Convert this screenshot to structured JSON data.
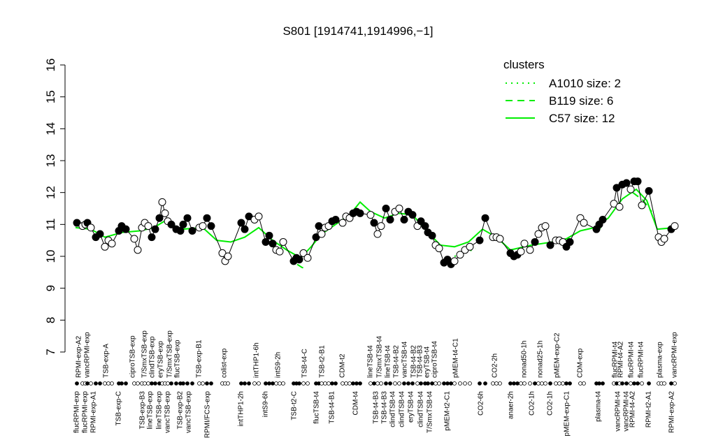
{
  "chart_data": {
    "type": "line",
    "title": "S801 [1914741,1914996,−1]",
    "ylim": [
      7,
      16
    ],
    "yticks": [
      7,
      8,
      9,
      10,
      11,
      12,
      13,
      14,
      15,
      16
    ],
    "xlim": [
      100,
      970
    ],
    "legend": {
      "title": "clusters",
      "position": "top-right",
      "color": "#00ee00"
    },
    "series": [
      {
        "name": "A1010 size: 2",
        "color": "#00ee00",
        "dash": "dotted",
        "x": [
          650,
          665,
          680
        ],
        "values": [
          10.0,
          10.1,
          10.25
        ]
      },
      {
        "name": "B119 size: 6",
        "color": "#00ee00",
        "dash": "dashed",
        "x": [
          425,
          432,
          440,
          600,
          850,
          865,
          890,
          905,
          920,
          932
        ],
        "values": [
          9.75,
          9.65,
          9.6,
          null,
          10.8,
          10.95,
          null,
          12.0,
          11.75,
          11.4
        ]
      },
      {
        "name": "C57 size: 12",
        "color": "#00ee00",
        "dash": "solid",
        "x": [
          108,
          130,
          150,
          175,
          200,
          220,
          235,
          260,
          290,
          310,
          330,
          350,
          370,
          390,
          410,
          430,
          445,
          460,
          480,
          500,
          515,
          530,
          550,
          570,
          590,
          610,
          630,
          650,
          670,
          690,
          710,
          730,
          760,
          790,
          810,
          830,
          850,
          870,
          890,
          910,
          925,
          940,
          965
        ],
        "values": [
          10.9,
          10.85,
          10.6,
          10.75,
          10.8,
          10.9,
          11.1,
          10.85,
          10.9,
          10.5,
          10.45,
          10.6,
          10.9,
          10.5,
          10.2,
          9.95,
          10.3,
          10.7,
          11.0,
          11.3,
          11.7,
          11.4,
          11.2,
          11.35,
          11.3,
          10.8,
          10.35,
          10.3,
          10.45,
          10.85,
          10.6,
          10.2,
          10.35,
          10.45,
          10.55,
          10.8,
          10.9,
          11.2,
          11.8,
          12.1,
          11.75,
          10.85,
          10.9
        ]
      }
    ],
    "points": {
      "x": [
        110,
        118,
        122,
        125,
        130,
        137,
        143,
        150,
        155,
        160,
        170,
        174,
        180,
        192,
        197,
        203,
        207,
        212,
        217,
        222,
        228,
        232,
        236,
        240,
        245,
        252,
        258,
        262,
        268,
        275,
        285,
        290,
        296,
        302,
        318,
        322,
        326,
        345,
        350,
        356,
        364,
        370,
        380,
        385,
        390,
        395,
        400,
        405,
        420,
        424,
        428,
        434,
        440,
        452,
        456,
        460,
        465,
        470,
        475,
        480,
        490,
        495,
        500,
        505,
        510,
        515,
        530,
        535,
        540,
        545,
        552,
        558,
        565,
        571,
        578,
        584,
        590,
        597,
        602,
        608,
        612,
        618,
        623,
        628,
        635,
        640,
        645,
        650,
        658,
        665,
        672,
        686,
        694,
        705,
        710,
        715,
        730,
        735,
        740,
        745,
        750,
        758,
        765,
        770,
        775,
        780,
        787,
        795,
        800,
        805,
        810,
        815,
        830,
        835,
        853,
        857,
        862,
        878,
        882,
        886,
        890,
        896,
        902,
        907,
        912,
        918,
        928,
        942,
        946,
        950,
        960,
        965
      ],
      "values": [
        11.05,
        10.95,
        11.0,
        11.05,
        10.9,
        10.6,
        10.7,
        10.3,
        10.5,
        10.4,
        10.8,
        10.95,
        10.85,
        10.55,
        10.2,
        10.9,
        11.05,
        10.95,
        10.6,
        10.85,
        11.2,
        11.7,
        11.35,
        11.1,
        11.0,
        10.85,
        10.8,
        11.0,
        11.2,
        10.8,
        10.9,
        10.95,
        11.2,
        10.95,
        10.1,
        9.85,
        10.0,
        11.05,
        10.85,
        11.25,
        11.15,
        11.25,
        10.45,
        10.65,
        10.4,
        10.2,
        10.15,
        10.45,
        9.85,
        9.95,
        9.9,
        10.1,
        9.95,
        10.6,
        10.95,
        10.7,
        10.9,
        10.95,
        11.1,
        11.15,
        11.05,
        11.25,
        11.2,
        11.35,
        11.4,
        11.35,
        11.3,
        11.05,
        10.7,
        10.95,
        11.5,
        11.15,
        11.4,
        11.5,
        11.15,
        11.4,
        11.3,
        10.95,
        11.1,
        10.95,
        10.75,
        10.65,
        10.35,
        10.25,
        9.8,
        9.9,
        9.75,
        9.85,
        10.05,
        10.2,
        10.3,
        10.5,
        11.2,
        10.6,
        10.6,
        10.55,
        10.1,
        10.0,
        10.05,
        10.15,
        10.4,
        10.2,
        10.45,
        10.7,
        10.9,
        10.95,
        10.35,
        10.5,
        10.5,
        10.45,
        10.3,
        10.45,
        11.2,
        11.05,
        10.85,
        11.0,
        11.15,
        11.65,
        12.15,
        11.55,
        12.25,
        12.3,
        12.1,
        12.35,
        12.35,
        11.6,
        12.05,
        10.6,
        10.45,
        10.55,
        10.85,
        10.95
      ],
      "filled": [
        true,
        false,
        false,
        true,
        false,
        true,
        true,
        false,
        false,
        false,
        true,
        true,
        true,
        false,
        false,
        false,
        false,
        false,
        true,
        true,
        true,
        false,
        false,
        false,
        true,
        true,
        true,
        true,
        true,
        true,
        false,
        false,
        true,
        true,
        false,
        false,
        false,
        true,
        true,
        true,
        false,
        false,
        true,
        true,
        true,
        false,
        false,
        false,
        true,
        true,
        true,
        false,
        false,
        true,
        true,
        false,
        false,
        false,
        true,
        true,
        false,
        false,
        false,
        true,
        true,
        true,
        false,
        true,
        false,
        false,
        true,
        true,
        false,
        false,
        true,
        true,
        true,
        false,
        true,
        true,
        true,
        true,
        false,
        false,
        true,
        true,
        true,
        false,
        false,
        false,
        false,
        true,
        true,
        false,
        false,
        false,
        true,
        true,
        true,
        false,
        false,
        false,
        true,
        false,
        false,
        false,
        true,
        false,
        false,
        false,
        true,
        true,
        false,
        false,
        true,
        true,
        true,
        false,
        true,
        false,
        true,
        true,
        false,
        true,
        true,
        false,
        true,
        false,
        false,
        false,
        true,
        false
      ]
    },
    "top_labels": {
      "x": [
        113,
        125,
        152,
        190,
        207,
        218,
        230,
        243,
        254,
        285,
        321,
        367,
        398,
        436,
        461,
        490,
        530,
        543,
        555,
        567,
        579,
        592,
        601,
        611,
        622,
        652,
        708,
        750,
        773,
        797,
        830,
        880,
        888,
        903,
        917,
        944,
        965
      ],
      "labels": [
        "RPMI-exp-A2",
        "vancRPMI-exp",
        "TSB-exp-A",
        "ciproTSB-exp",
        "T/SmxTSB-exp",
        "clindTSB-exp",
        "eryTSB-exp",
        "T/SmxTSB-exp",
        "flucTSB-exp",
        "TSB-exp-B1",
        "colist-exp",
        "intTHP1-6h",
        "intS9-2h",
        "TSB-t4-C",
        "TSB-t2-B1",
        "CDM-t2",
        "lineTSB-t4",
        "T/SmxTSB-t4",
        "lineTSB-t4",
        "TSB-t4-B2",
        "vancTSB-t4",
        "TSB-t4-B2",
        "TSB-t4-B3",
        "eryTSB-t4",
        "ciproTSB-t4",
        "pMEM-t4-C1",
        "CO2-2h",
        "nonad50-1h",
        "nonad25-1h",
        "pMEM-exp-C2",
        "CDM-exp",
        "flucRPMI-t4",
        "RPMI-t4-A2",
        "flucRPMI-t4",
        "flucRPMI-t4",
        "plasma-exp",
        "vancRPMI-exp"
      ]
    },
    "bottom_labels": {
      "x": [
        110,
        122,
        134,
        170,
        204,
        215,
        228,
        240,
        258,
        270,
        297,
        345,
        380,
        421,
        453,
        475,
        509,
        538,
        550,
        562,
        575,
        588,
        602,
        615,
        640,
        688,
        731,
        761,
        787,
        811,
        856,
        884,
        896,
        905,
        928,
        961
      ],
      "labels": [
        "flucRPMI-exp",
        "flucRPMI-exp",
        "RPMI-exp-A1",
        "TSB-exp-C",
        "TSB-exp-B3",
        "lineTSB-exp",
        "lineTSB-exp",
        "vancTSB-exp",
        "TSB-exp-B2",
        "vancTSB-exp",
        "RPMI/FCS-exp",
        "intTHP1-2h",
        "intS9-6h",
        "TSB-t2-C",
        "flucTSB-t4",
        "TSB-t4-B1",
        "CDM-t4",
        "TSB-t4-B3",
        "TSB-t4-B3",
        "clindTSB-t4",
        "clindTSB-t4",
        "eryTSB-t4",
        "clindTSB-t4",
        "T/SmxTSB-t4",
        "pMEM-t2-C1",
        "CO2-6h",
        "anaer-2h",
        "CO2-1h",
        "CO2-1h",
        "pMEM-exp-C1",
        "plasma-t4",
        "vancRPMI-t4",
        "vancRPMI-t4",
        "RPMI-t4-A2",
        "RPMI-t2-A1",
        "RPMI-exp-A2"
      ]
    }
  }
}
